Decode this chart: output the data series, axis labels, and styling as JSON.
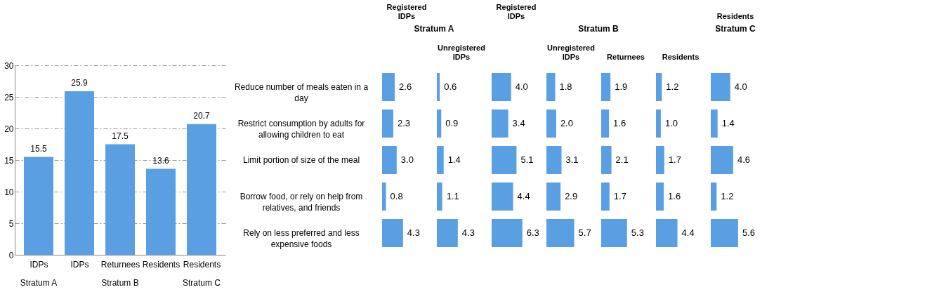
{
  "chart_data": [
    {
      "type": "bar",
      "categories": [
        "IDPs",
        "IDPs",
        "Returnees",
        "Residents",
        "Residents"
      ],
      "values": [
        15.5,
        25.9,
        17.5,
        13.6,
        20.7
      ],
      "color": "#5b9fe3",
      "ylim": [
        0,
        30
      ],
      "yticks": [
        0,
        5,
        10,
        15,
        20,
        25,
        30
      ],
      "grid": "y",
      "data_labels": true,
      "annotations": [
        "Stratum A",
        "Stratum B",
        "Stratum C"
      ]
    },
    {
      "type": "bar",
      "orientation": "horizontal",
      "title": "Registered IDPs",
      "annotations": [
        "Stratum A"
      ],
      "tick_labels": "y",
      "color": "#5b9fe3",
      "categories": [
        "Reduce number of meals eaten in a day",
        "Restrict consumption by adults for allowing children to eat",
        "Limit portion of size of the meal",
        "Borrow food, or rely on help from relatives, and friends",
        "Rely on less preferred and less expensive foods"
      ],
      "values": [
        2.6,
        2.3,
        3.0,
        0.8,
        4.3
      ],
      "value_labels": [
        "2.6",
        "2.3",
        "3.0",
        "0.8",
        "4.3"
      ]
    },
    {
      "type": "bar",
      "orientation": "horizontal",
      "title": "Unregistered IDPs",
      "tick_labels": false,
      "color": "#5b9fe3",
      "categories": [
        null,
        null,
        null,
        null,
        null
      ],
      "values": [
        0.6,
        0.9,
        1.4,
        1.1,
        4.3
      ],
      "value_labels": [
        "0.6",
        "0.9",
        "1.4",
        "1.1",
        "4.3"
      ]
    },
    {
      "type": "bar",
      "orientation": "horizontal",
      "title": "Registered IDPs",
      "annotations": [
        "Stratum B"
      ],
      "tick_labels": false,
      "color": "#5b9fe3",
      "categories": [
        null,
        null,
        null,
        null,
        null
      ],
      "values": [
        4.0,
        3.4,
        5.1,
        4.4,
        6.3
      ],
      "value_labels": [
        "4.0",
        "3.4",
        "5.1",
        "4.4",
        "6.3"
      ]
    },
    {
      "type": "bar",
      "orientation": "horizontal",
      "title": "Unregistered IDPs",
      "tick_labels": false,
      "color": "#5b9fe3",
      "categories": [
        null,
        null,
        null,
        null,
        null
      ],
      "values": [
        1.8,
        2.0,
        3.1,
        2.9,
        5.7
      ],
      "value_labels": [
        "1.8",
        "2.0",
        "3.1",
        "2.9",
        "5.7"
      ]
    },
    {
      "type": "bar",
      "orientation": "horizontal",
      "title": "Returnees",
      "tick_labels": false,
      "color": "#5b9fe3",
      "categories": [
        null,
        null,
        null,
        null,
        null
      ],
      "values": [
        1.9,
        1.6,
        2.1,
        1.7,
        5.3
      ],
      "value_labels": [
        "1.9",
        "1.6",
        "2.1",
        "1.7",
        "5.3"
      ]
    },
    {
      "type": "bar",
      "orientation": "horizontal",
      "title": "Residents",
      "tick_labels": false,
      "color": "#5b9fe3",
      "categories": [
        null,
        null,
        null,
        null,
        null
      ],
      "values": [
        1.2,
        1.0,
        1.7,
        1.6,
        4.4
      ],
      "value_labels": [
        "1.2",
        "1.0",
        "1.7",
        "1.6",
        "4.4"
      ]
    },
    {
      "type": "bar",
      "orientation": "horizontal",
      "title": "Residents",
      "annotations": [
        "Stratum C"
      ],
      "tick_labels": false,
      "color": "#5b9fe3",
      "categories": [
        null,
        null,
        null,
        null,
        null
      ],
      "values": [
        4.0,
        1.4,
        4.6,
        1.2,
        5.6
      ],
      "value_labels": [
        "4.0",
        "1.4",
        "4.6",
        "1.2",
        "5.6"
      ]
    }
  ]
}
